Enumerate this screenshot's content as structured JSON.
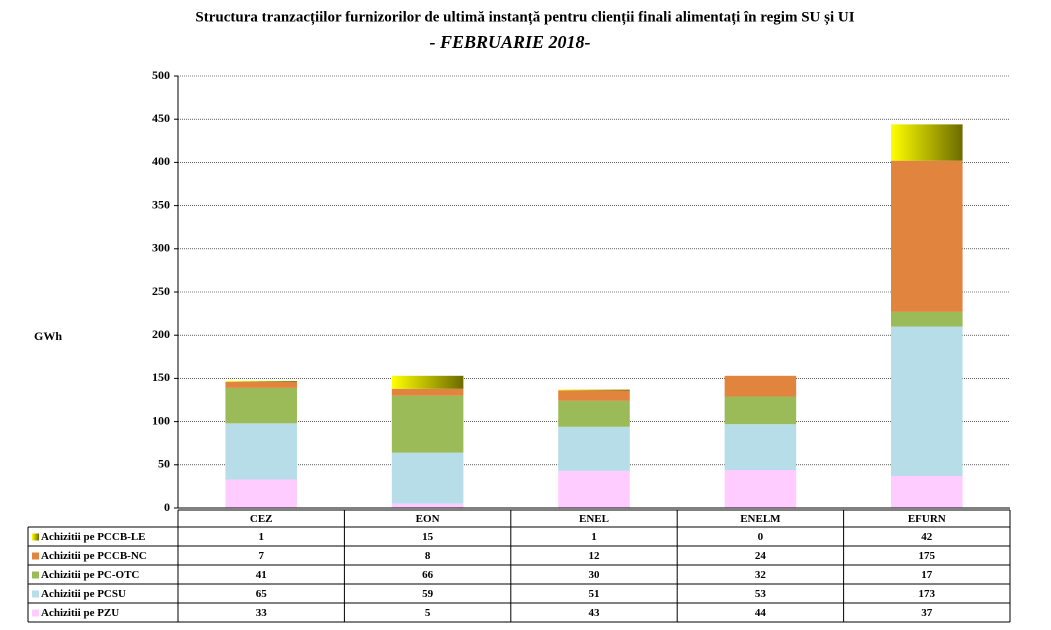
{
  "chart_data": {
    "type": "bar",
    "stacked": true,
    "title": "Structura tranzacțiilor furnizorilor de ultimă instanță pentru clienții finali alimentați în regim SU și UI",
    "subtitle": "- FEBRUARIE 2018-",
    "y_label": "GWh",
    "categories": [
      "CEZ",
      "EON",
      "ENEL",
      "ENELM",
      "EFURN"
    ],
    "series": [
      {
        "name": "Achizitii pe PZU",
        "color": "#ffccff",
        "values": [
          33,
          5,
          43,
          44,
          37
        ]
      },
      {
        "name": "Achizitii pe PCSU",
        "color": "#b7dde8",
        "values": [
          65,
          59,
          51,
          53,
          173
        ]
      },
      {
        "name": "Achizitii pe PC-OTC",
        "color": "#9bbb59",
        "values": [
          41,
          66,
          30,
          32,
          17
        ]
      },
      {
        "name": "Achizitii pe PCCB-NC",
        "color": "#e0843e",
        "values": [
          7,
          8,
          12,
          24,
          175
        ]
      },
      {
        "name": "Achizitii pe PCCB-LE",
        "color": "#ffff00",
        "values": [
          1,
          15,
          1,
          0,
          42
        ]
      }
    ],
    "ylim": [
      0,
      500
    ],
    "yticks": [
      0,
      50,
      100,
      150,
      200,
      250,
      300,
      350,
      400,
      450,
      500
    ],
    "grid": true
  }
}
